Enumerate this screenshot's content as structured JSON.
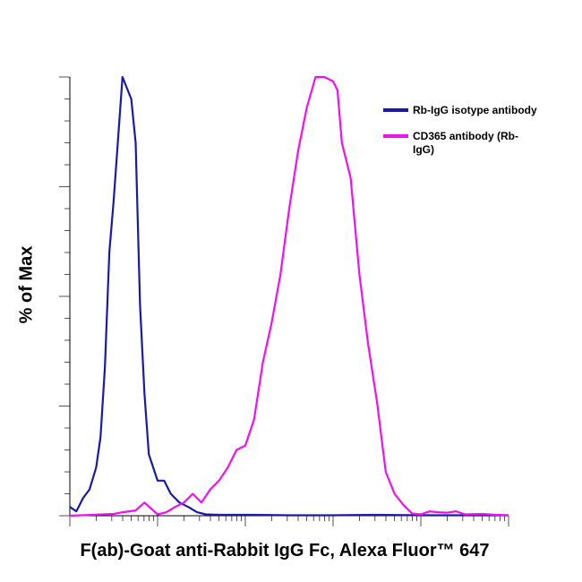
{
  "chart_data": {
    "type": "line",
    "xlabel": "F(ab)-Goat anti-Rabbit IgG Fc, Alexa Fluor™ 647",
    "ylabel": "% of Max",
    "ylim": [
      0,
      100
    ],
    "y_ticks": [
      0,
      25,
      50,
      75,
      100
    ],
    "x_scale": "log",
    "x_tick_labels": [],
    "grid": false,
    "legend_position": "top-right",
    "series": [
      {
        "name": "Rb-IgG isotype antibody",
        "color": "#1a1aa6",
        "x": [
          0.0,
          0.015,
          0.03,
          0.045,
          0.06,
          0.07,
          0.08,
          0.09,
          0.1,
          0.11,
          0.12,
          0.14,
          0.15,
          0.16,
          0.17,
          0.18,
          0.19,
          0.2,
          0.215,
          0.23,
          0.25,
          0.27,
          0.29,
          0.31,
          0.34,
          0.38,
          0.42,
          0.5,
          0.6,
          0.7,
          0.8,
          0.9,
          1.0
        ],
        "y": [
          2,
          1,
          4,
          6,
          11,
          18,
          34,
          60,
          72,
          86,
          100,
          95,
          85,
          48,
          28,
          14,
          11,
          8,
          8,
          5,
          3,
          2,
          0.8,
          0.3,
          0.2,
          0.2,
          0.2,
          0.1,
          0.1,
          0.2,
          0.1,
          0.1,
          0.1
        ]
      },
      {
        "name": "CD365 antibody (Rb-IgG)",
        "color": "#ee11ee",
        "x": [
          0.0,
          0.05,
          0.1,
          0.12,
          0.15,
          0.17,
          0.2,
          0.22,
          0.24,
          0.26,
          0.28,
          0.3,
          0.32,
          0.34,
          0.36,
          0.38,
          0.4,
          0.42,
          0.44,
          0.46,
          0.48,
          0.5,
          0.52,
          0.54,
          0.56,
          0.58,
          0.6,
          0.61,
          0.62,
          0.64,
          0.66,
          0.68,
          0.7,
          0.72,
          0.74,
          0.76,
          0.78,
          0.8,
          0.82,
          0.84,
          0.86,
          0.88,
          0.9,
          0.94,
          0.97,
          1.0
        ],
        "y": [
          0,
          0.2,
          0.4,
          0.8,
          1.2,
          3,
          0.3,
          0.8,
          2,
          3,
          5,
          3,
          6,
          8,
          11,
          15,
          16,
          22,
          35,
          44,
          55,
          70,
          83,
          93,
          100,
          100,
          99,
          97,
          85,
          77,
          55,
          39,
          26,
          10,
          5,
          2.5,
          0.5,
          0.3,
          1,
          0.8,
          0.7,
          1,
          0.3,
          0.4,
          0.2,
          0.1
        ]
      }
    ]
  }
}
